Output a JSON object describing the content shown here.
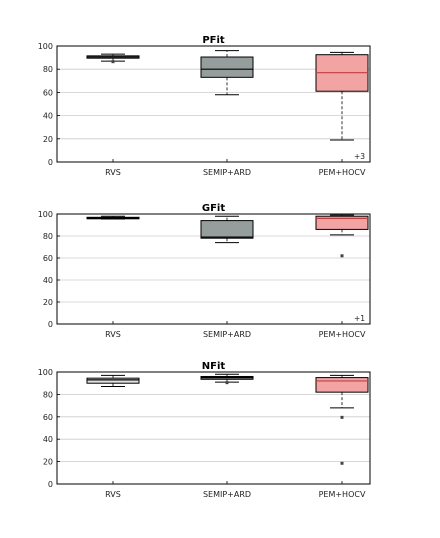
{
  "colors": {
    "rvs": "#e2e2e2",
    "semip_ard": "#969d9d",
    "pem_hocv": "#f2a4a4",
    "gridline": "#cccccc"
  },
  "chart_data": [
    {
      "type": "box",
      "title": "PFit",
      "categories": [
        "RVS",
        "SEMIP+ARD",
        "PEM+HOCV"
      ],
      "ylim": [
        0,
        100
      ],
      "yticks": [
        "0",
        "20",
        "40",
        "60",
        "80",
        "100"
      ],
      "grid": true,
      "boxes": [
        {
          "category": "RVS",
          "whisker_low": 87,
          "q1": 89.5,
          "median": 90.5,
          "q3": 91.5,
          "whisker_high": 93,
          "outliers": [
            86.5
          ]
        },
        {
          "category": "SEMIP+ARD",
          "whisker_low": 58,
          "q1": 73,
          "median": 80,
          "q3": 90.5,
          "whisker_high": 96,
          "outliers": []
        },
        {
          "category": "PEM+HOCV",
          "whisker_low": 19,
          "q1": 61,
          "median": 77,
          "q3": 92.5,
          "whisker_high": 94.5,
          "outliers": []
        }
      ],
      "annotations": [
        {
          "category": "PEM+HOCV",
          "text": "+3"
        }
      ]
    },
    {
      "type": "box",
      "title": "GFit",
      "categories": [
        "RVS",
        "SEMIP+ARD",
        "PEM+HOCV"
      ],
      "ylim": [
        0,
        100
      ],
      "yticks": [
        "0",
        "20",
        "40",
        "60",
        "80",
        "100"
      ],
      "grid": true,
      "boxes": [
        {
          "category": "RVS",
          "whisker_low": 95.5,
          "q1": 96,
          "median": 96.5,
          "q3": 97,
          "whisker_high": 98,
          "outliers": []
        },
        {
          "category": "SEMIP+ARD",
          "whisker_low": 74,
          "q1": 78,
          "median": 79,
          "q3": 94,
          "whisker_high": 98,
          "outliers": []
        },
        {
          "category": "PEM+HOCV",
          "whisker_low": 81,
          "q1": 86,
          "median": 96,
          "q3": 98,
          "whisker_high": 99,
          "outliers": [
            62
          ]
        }
      ],
      "annotations": [
        {
          "category": "PEM+HOCV",
          "text": "+1"
        }
      ]
    },
    {
      "type": "box",
      "title": "NFit",
      "categories": [
        "RVS",
        "SEMIP+ARD",
        "PEM+HOCV"
      ],
      "ylim": [
        0,
        100
      ],
      "yticks": [
        "0",
        "20",
        "40",
        "60",
        "80",
        "100"
      ],
      "grid": true,
      "boxes": [
        {
          "category": "RVS",
          "whisker_low": 87,
          "q1": 90,
          "median": 93,
          "q3": 94.5,
          "whisker_high": 97,
          "outliers": []
        },
        {
          "category": "SEMIP+ARD",
          "whisker_low": 91,
          "q1": 93.5,
          "median": 95,
          "q3": 96,
          "whisker_high": 98,
          "outliers": [
            90.5
          ]
        },
        {
          "category": "PEM+HOCV",
          "whisker_low": 68,
          "q1": 82,
          "median": 92,
          "q3": 95,
          "whisker_high": 97,
          "outliers": [
            59.5,
            18.5
          ]
        }
      ],
      "annotations": []
    }
  ]
}
